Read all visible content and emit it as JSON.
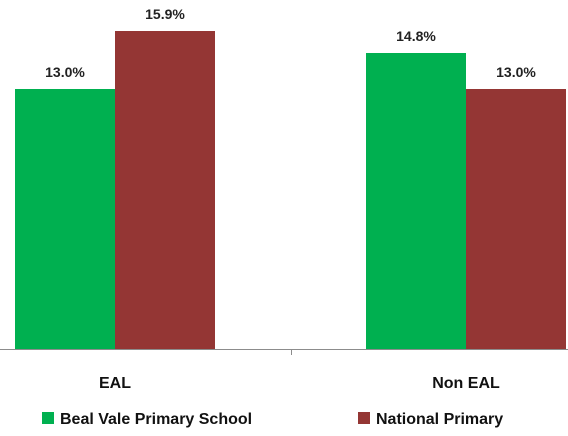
{
  "chart_data": {
    "type": "bar",
    "title": "",
    "xlabel": "",
    "ylabel": "",
    "categories": [
      "EAL",
      "Non EAL"
    ],
    "series": [
      {
        "name": "Beal Vale Primary School",
        "values": [
          13.0,
          14.8
        ],
        "labels": [
          "13.0%",
          "14.8%"
        ],
        "color": "#00B050"
      },
      {
        "name": "National Primary",
        "values": [
          15.9,
          13.0
        ],
        "labels": [
          "15.9%",
          "13.0%"
        ],
        "color": "#943634"
      }
    ],
    "ylim": [
      0,
      15.9
    ],
    "grid": false,
    "legend": "bottom"
  }
}
